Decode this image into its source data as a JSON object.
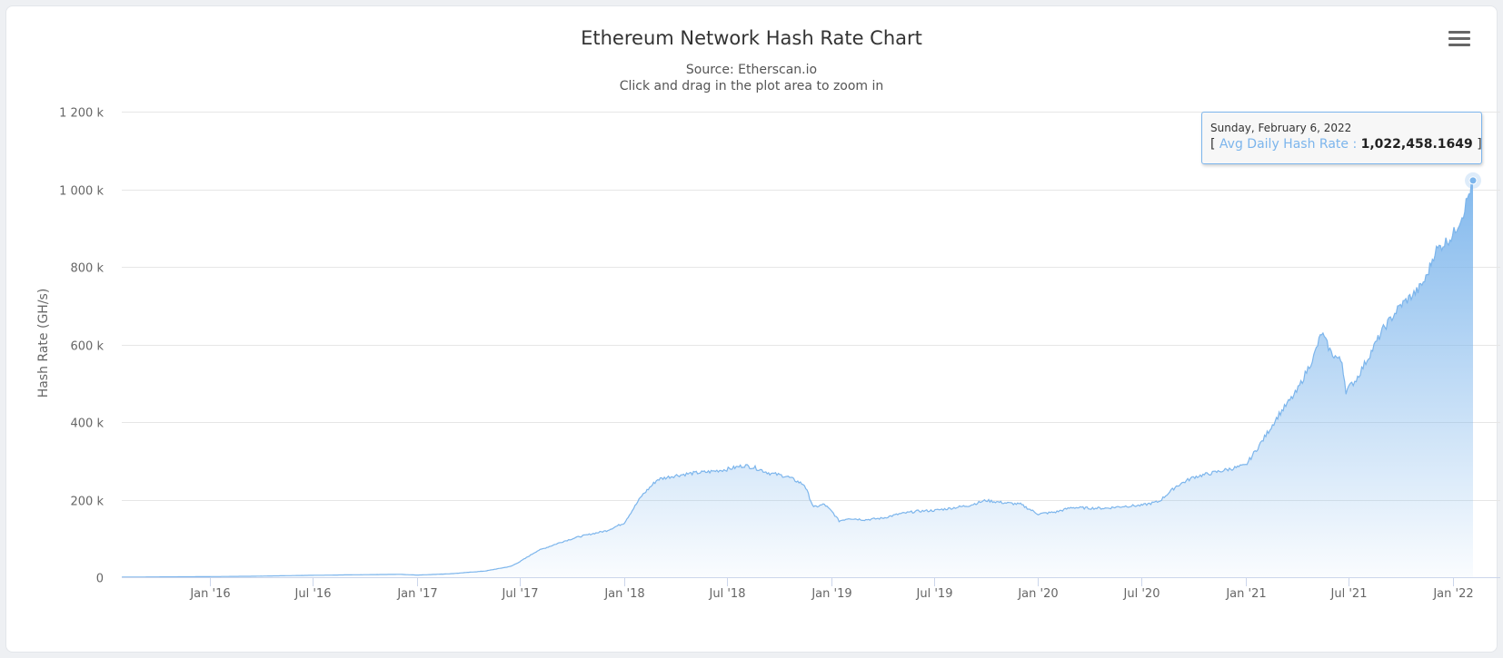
{
  "title": "Ethereum Network Hash Rate Chart",
  "subtitle_source": "Source: Etherscan.io",
  "subtitle_hint": "Click and drag in the plot area to zoom in",
  "menu": {
    "icon": "hamburger-menu-icon"
  },
  "tooltip": {
    "date": "Sunday, February 6, 2022",
    "open_bracket": "[",
    "series_label": "Avg Daily Hash Rate :",
    "value": "1,022,458.1649",
    "close_bracket": "]"
  },
  "colors": {
    "series": "#7cb5ec",
    "grid": "#e6e6e6",
    "axis_text": "#666666"
  },
  "chart_data": {
    "type": "area",
    "title": "Ethereum Network Hash Rate Chart",
    "subtitle": "Source: Etherscan.io",
    "ylabel": "Hash Rate (GH/s)",
    "ylim": [
      0,
      1200000
    ],
    "yticks": [
      0,
      200000,
      400000,
      600000,
      800000,
      1000000,
      1200000
    ],
    "ytick_labels": [
      "0",
      "200 k",
      "400 k",
      "600 k",
      "800 k",
      "1 000 k",
      "1 200 k"
    ],
    "xticks": [
      "2016-01-01",
      "2016-07-01",
      "2017-01-01",
      "2017-07-01",
      "2018-01-01",
      "2018-07-01",
      "2019-01-01",
      "2019-07-01",
      "2020-01-01",
      "2020-07-01",
      "2021-01-01",
      "2021-07-01",
      "2022-01-01"
    ],
    "xtick_labels": [
      "Jan '16",
      "Jul '16",
      "Jan '17",
      "Jul '17",
      "Jan '18",
      "Jul '18",
      "Jan '19",
      "Jul '19",
      "Jan '20",
      "Jul '20",
      "Jan '21",
      "Jul '21",
      "Jan '22"
    ],
    "xlim": [
      "2015-07-30",
      "2022-02-06"
    ],
    "grid": true,
    "legend": "none",
    "series": [
      {
        "name": "Avg Daily Hash Rate",
        "x": [
          "2015-07-30",
          "2015-10-01",
          "2016-01-01",
          "2016-03-15",
          "2016-07-01",
          "2016-10-01",
          "2016-11-01",
          "2016-12-01",
          "2017-01-01",
          "2017-03-01",
          "2017-05-01",
          "2017-06-15",
          "2017-07-01",
          "2017-08-01",
          "2017-09-15",
          "2017-10-15",
          "2017-12-01",
          "2018-01-01",
          "2018-02-01",
          "2018-03-01",
          "2018-04-01",
          "2018-05-01",
          "2018-06-01",
          "2018-07-01",
          "2018-08-01",
          "2018-08-20",
          "2018-09-15",
          "2018-10-15",
          "2018-11-15",
          "2018-12-01",
          "2018-12-20",
          "2019-01-05",
          "2019-01-15",
          "2019-02-01",
          "2019-03-01",
          "2019-04-01",
          "2019-05-01",
          "2019-06-01",
          "2019-07-01",
          "2019-08-01",
          "2019-09-01",
          "2019-10-01",
          "2019-11-01",
          "2019-12-01",
          "2020-01-01",
          "2020-02-01",
          "2020-03-01",
          "2020-04-01",
          "2020-05-01",
          "2020-06-01",
          "2020-07-01",
          "2020-08-01",
          "2020-09-01",
          "2020-10-01",
          "2020-11-01",
          "2020-12-01",
          "2021-01-01",
          "2021-02-01",
          "2021-03-01",
          "2021-04-01",
          "2021-05-01",
          "2021-05-15",
          "2021-06-01",
          "2021-06-20",
          "2021-06-27",
          "2021-07-15",
          "2021-08-01",
          "2021-09-01",
          "2021-10-01",
          "2021-11-01",
          "2021-11-15",
          "2021-12-01",
          "2022-01-01",
          "2022-01-20",
          "2022-02-06"
        ],
        "y": [
          100,
          800,
          1500,
          2500,
          5000,
          6500,
          7000,
          7500,
          5500,
          9000,
          16000,
          28000,
          40000,
          68000,
          92000,
          105000,
          120000,
          140000,
          210000,
          252000,
          262000,
          268000,
          272000,
          278000,
          288000,
          282000,
          268000,
          260000,
          238000,
          180000,
          188000,
          165000,
          145000,
          152000,
          148000,
          152000,
          163000,
          170000,
          172000,
          178000,
          185000,
          198000,
          192000,
          188000,
          163000,
          168000,
          180000,
          178000,
          178000,
          183000,
          185000,
          195000,
          235000,
          258000,
          268000,
          278000,
          288000,
          355000,
          420000,
          478000,
          568000,
          630000,
          578000,
          555000,
          480000,
          510000,
          555000,
          640000,
          700000,
          740000,
          770000,
          840000,
          880000,
          940000,
          1022458.1649
        ]
      }
    ],
    "highlight_point": {
      "x": "2022-02-06",
      "y": 1022458.1649
    }
  }
}
